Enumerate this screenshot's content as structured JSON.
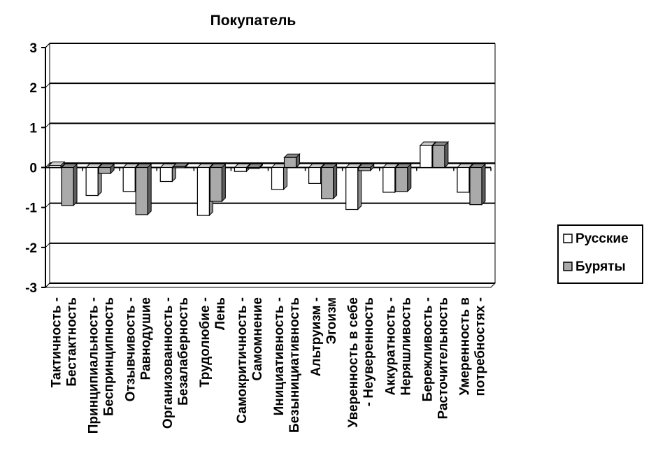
{
  "chart_data": {
    "type": "bar",
    "title": "Покупатель",
    "categories": [
      [
        "Тактичность -",
        "Бестактность"
      ],
      [
        "Принципиальность -",
        "Беспринципность"
      ],
      [
        "Отзывчивость -",
        "Равнодушие"
      ],
      [
        "Организованность -",
        "Безалаберность"
      ],
      [
        "Трудолюбие -",
        "Лень"
      ],
      [
        "Самокритичность -",
        "Самомнение"
      ],
      [
        "Инициативность -",
        "Безынициативность"
      ],
      [
        "Альтруизм -",
        "Эгоизм"
      ],
      [
        "Уверенность в себе",
        "- Неуверенность"
      ],
      [
        "Аккуратность -",
        "Неряшливость"
      ],
      [
        "Бережливость -",
        "Расточительность"
      ],
      [
        "Умеренность в",
        "потребностях -"
      ]
    ],
    "series": [
      {
        "name": "Русские",
        "color": "#ffffff",
        "values": [
          0.05,
          -0.7,
          -0.6,
          -0.35,
          -1.2,
          -0.1,
          -0.55,
          -0.4,
          -1.05,
          -0.62,
          0.55,
          -0.62
        ]
      },
      {
        "name": "Буряты",
        "color": "#aaaaaa",
        "values": [
          -0.95,
          -0.15,
          -1.18,
          0.02,
          -0.85,
          0.0,
          0.25,
          -0.78,
          -0.08,
          -0.6,
          0.55,
          -0.93
        ]
      }
    ],
    "ylim": [
      -3,
      3
    ],
    "yticks": [
      3,
      2,
      1,
      0,
      -1,
      -2,
      -3
    ],
    "grid": true,
    "legend": "right",
    "xlabel": "",
    "ylabel": ""
  }
}
